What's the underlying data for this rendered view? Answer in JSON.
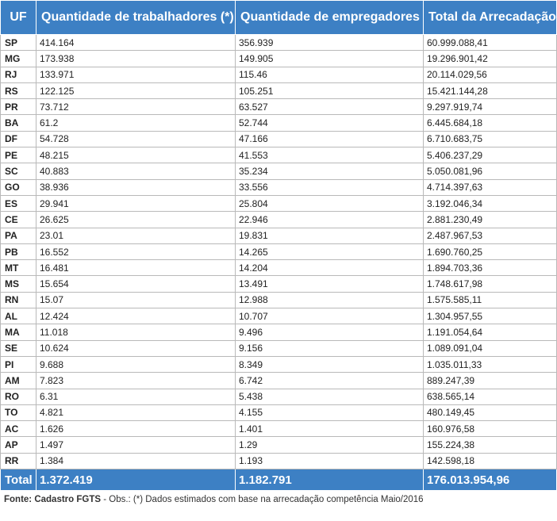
{
  "table": {
    "headers": [
      "UF",
      "Quantidade de trabalhadores (*)",
      "Quantidade de empregadores",
      "Total da Arrecadação"
    ],
    "rows": [
      [
        "SP",
        "414.164",
        "356.939",
        "60.999.088,41"
      ],
      [
        "MG",
        "173.938",
        "149.905",
        "19.296.901,42"
      ],
      [
        "RJ",
        "133.971",
        "115.46",
        "20.114.029,56"
      ],
      [
        "RS",
        "122.125",
        "105.251",
        "15.421.144,28"
      ],
      [
        "PR",
        "73.712",
        "63.527",
        "9.297.919,74"
      ],
      [
        "BA",
        "61.2",
        "52.744",
        "6.445.684,18"
      ],
      [
        "DF",
        "54.728",
        "47.166",
        "6.710.683,75"
      ],
      [
        "PE",
        "48.215",
        "41.553",
        "5.406.237,29"
      ],
      [
        "SC",
        "40.883",
        "35.234",
        "5.050.081,96"
      ],
      [
        "GO",
        "38.936",
        "33.556",
        "4.714.397,63"
      ],
      [
        "ES",
        "29.941",
        "25.804",
        "3.192.046,34"
      ],
      [
        "CE",
        "26.625",
        "22.946",
        "2.881.230,49"
      ],
      [
        "PA",
        "23.01",
        "19.831",
        "2.487.967,53"
      ],
      [
        "PB",
        "16.552",
        "14.265",
        "1.690.760,25"
      ],
      [
        "MT",
        "16.481",
        "14.204",
        "1.894.703,36"
      ],
      [
        "MS",
        "15.654",
        "13.491",
        "1.748.617,98"
      ],
      [
        "RN",
        "15.07",
        "12.988",
        "1.575.585,11"
      ],
      [
        "AL",
        "12.424",
        "10.707",
        "1.304.957,55"
      ],
      [
        "MA",
        "11.018",
        "9.496",
        "1.191.054,64"
      ],
      [
        "SE",
        "10.624",
        "9.156",
        "1.089.091,04"
      ],
      [
        "PI",
        "9.688",
        "8.349",
        "1.035.011,33"
      ],
      [
        "AM",
        "7.823",
        "6.742",
        "889.247,39"
      ],
      [
        "RO",
        "6.31",
        "5.438",
        "638.565,14"
      ],
      [
        "TO",
        "4.821",
        "4.155",
        "480.149,45"
      ],
      [
        "AC",
        "1.626",
        "1.401",
        "160.976,58"
      ],
      [
        "AP",
        "1.497",
        "1.29",
        "155.224,38"
      ],
      [
        "RR",
        "1.384",
        "1.193",
        "142.598,18"
      ]
    ],
    "total": [
      "Total",
      "1.372.419",
      "1.182.791",
      "176.013.954,96"
    ]
  },
  "footer": {
    "source_label": "Fonte: Cadastro FGTS",
    "note": " - Obs.: (*) Dados estimados com base na arrecadação competência Maio/2016"
  }
}
